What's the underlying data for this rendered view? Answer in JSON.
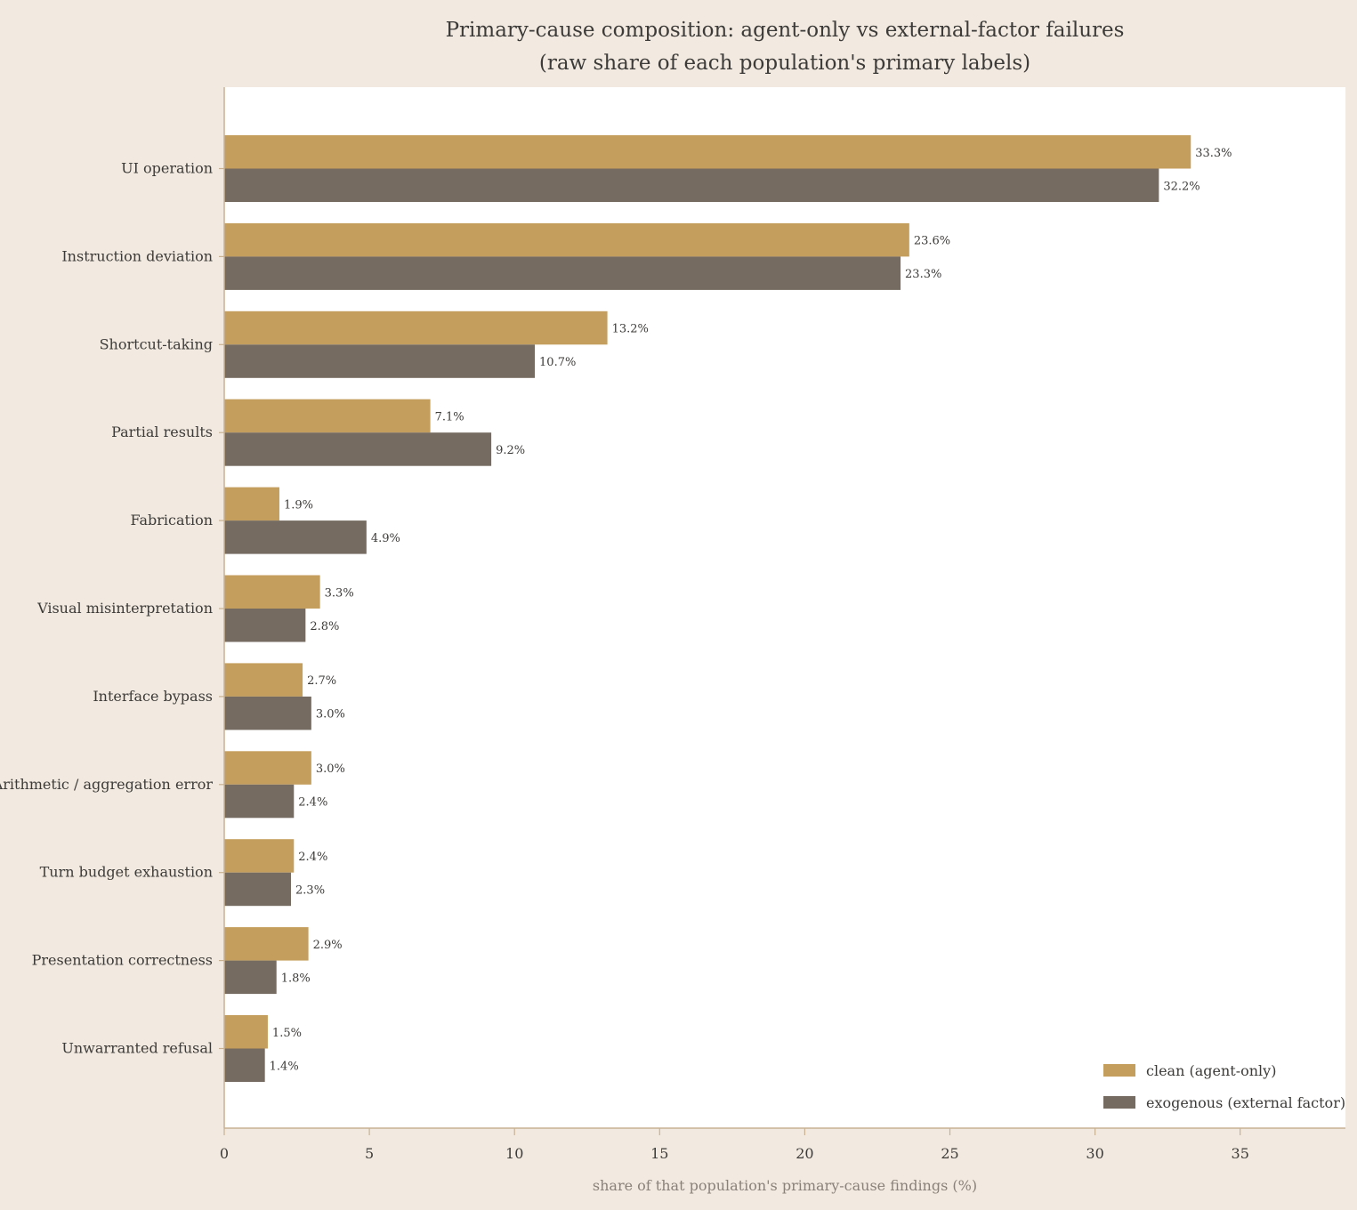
{
  "chart_data": {
    "type": "bar",
    "orientation": "horizontal",
    "title": "Primary-cause composition: agent-only vs external-factor failures",
    "subtitle": "(raw share of each population's primary labels)",
    "xlabel": "share of that population's primary-cause findings (%)",
    "ylabel": "",
    "xlim": [
      0,
      38.5
    ],
    "xticks": [
      0,
      5,
      10,
      15,
      20,
      25,
      30,
      35
    ],
    "grid": false,
    "legend_position": "bottom-right",
    "categories": [
      "UI operation",
      "Instruction deviation",
      "Shortcut-taking",
      "Partial results",
      "Fabrication",
      "Visual misinterpretation",
      "Interface bypass",
      "Arithmetic / aggregation error",
      "Turn budget exhaustion",
      "Presentation correctness",
      "Unwarranted refusal"
    ],
    "series": [
      {
        "name": "clean (agent-only)",
        "color": "#c49e5c",
        "values": [
          33.3,
          23.6,
          13.2,
          7.1,
          1.9,
          3.3,
          2.7,
          3.0,
          2.4,
          2.9,
          1.5
        ],
        "labels": [
          "33.3%",
          "23.6%",
          "13.2%",
          "7.1%",
          "1.9%",
          "3.3%",
          "2.7%",
          "3.0%",
          "2.4%",
          "2.9%",
          "1.5%"
        ]
      },
      {
        "name": "exogenous (external factor)",
        "color": "#766b60",
        "values": [
          32.2,
          23.3,
          10.7,
          9.2,
          4.9,
          2.8,
          3.0,
          2.4,
          2.3,
          1.8,
          1.4
        ],
        "labels": [
          "32.2%",
          "23.3%",
          "10.7%",
          "9.2%",
          "4.9%",
          "2.8%",
          "3.0%",
          "2.4%",
          "2.3%",
          "1.8%",
          "1.4%"
        ]
      }
    ]
  }
}
